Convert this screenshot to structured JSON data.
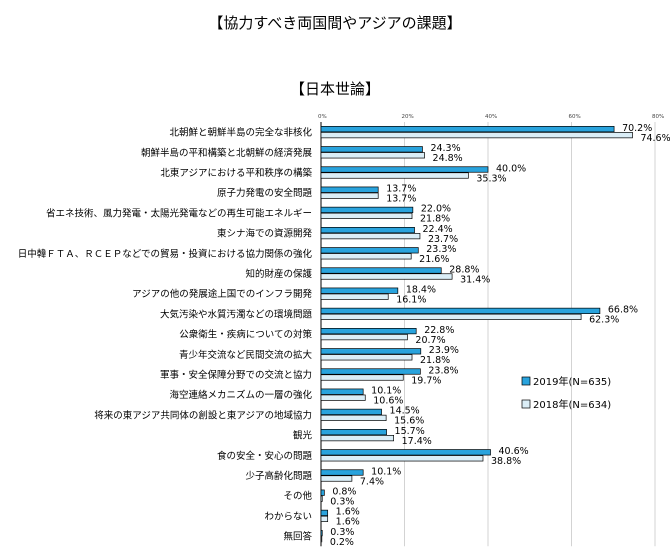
{
  "page": {
    "title": "【協力すべき両国間やアジアの課題】",
    "subtitle": "【日本世論】"
  },
  "colors": {
    "series_2019": "#29a3dd",
    "series_2018": "#dbeef7",
    "bar_border": "#000000",
    "gridline": "#c8c8c8"
  },
  "chart_data": {
    "type": "bar",
    "orientation": "horizontal",
    "xlim": [
      0,
      80
    ],
    "x_ticks": [
      "0%",
      "20%",
      "40%",
      "60%",
      "80%"
    ],
    "grid": true,
    "legend_position": "right",
    "categories": [
      "北朝鮮と朝鮮半島の完全な非核化",
      "朝鮮半島の平和構築と北朝鮮の経済発展",
      "北東アジアにおける平和秩序の構築",
      "原子力発電の安全問題",
      "省エネ技術、風力発電・太陽光発電などの再生可能エネルギー",
      "東シナ海での資源開発",
      "日中韓ＦＴＡ、ＲＣＥＰなどでの貿易・投資における協力関係の強化",
      "知的財産の保護",
      "アジアの他の発展途上国でのインフラ開発",
      "大気汚染や水質汚濁などの環境問題",
      "公衆衛生・疾病についての対策",
      "青少年交流など民間交流の拡大",
      "軍事・安全保障分野での交流と協力",
      "海空連絡メカニズムの一層の強化",
      "将来の東アジア共同体の創設と東アジアの地域協力",
      "観光",
      "食の安全・安心の問題",
      "少子高齢化問題",
      "その他",
      "わからない",
      "無回答"
    ],
    "series": [
      {
        "name": "2019年(N=635)",
        "values": [
          70.2,
          24.3,
          40.0,
          13.7,
          22.0,
          22.4,
          23.3,
          28.8,
          18.4,
          66.8,
          22.8,
          23.9,
          23.8,
          10.1,
          14.5,
          15.7,
          40.6,
          10.1,
          0.8,
          1.6,
          0.3
        ],
        "labels": [
          "70.2%",
          "24.3%",
          "40.0%",
          "13.7%",
          "22.0%",
          "22.4%",
          "23.3%",
          "28.8%",
          "18.4%",
          "66.8%",
          "22.8%",
          "23.9%",
          "23.8%",
          "10.1%",
          "14.5%",
          "15.7%",
          "40.6%",
          "10.1%",
          "0.8%",
          "1.6%",
          "0.3%"
        ]
      },
      {
        "name": "2018年(N=634)",
        "values": [
          74.6,
          24.8,
          35.3,
          13.7,
          21.8,
          23.7,
          21.6,
          31.4,
          16.1,
          62.3,
          20.7,
          21.8,
          19.7,
          10.6,
          15.6,
          17.4,
          38.8,
          7.4,
          0.3,
          1.6,
          0.2
        ],
        "labels": [
          "74.6%",
          "24.8%",
          "35.3%",
          "13.7%",
          "21.8%",
          "23.7%",
          "21.6%",
          "31.4%",
          "16.1%",
          "62.3%",
          "20.7%",
          "21.8%",
          "19.7%",
          "10.6%",
          "15.6%",
          "17.4%",
          "38.8%",
          "7.4%",
          "0.3%",
          "1.6%",
          "0.2%"
        ]
      }
    ]
  }
}
